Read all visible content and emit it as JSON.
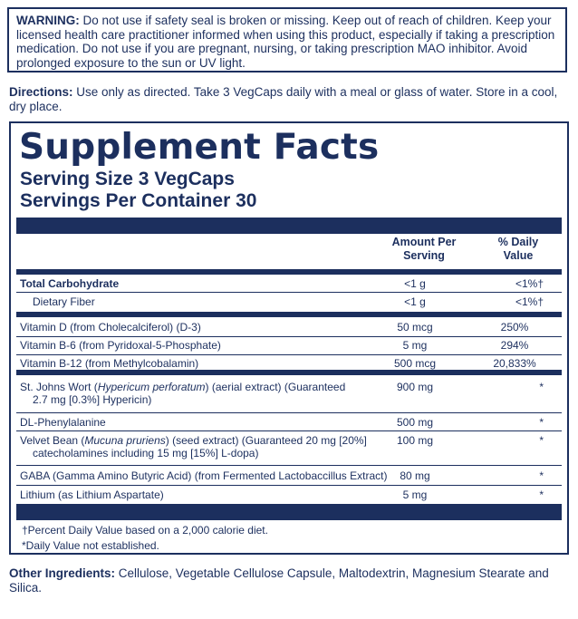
{
  "warning": {
    "label": "WARNING:",
    "text": "Do not use if safety seal is broken or missing. Keep out of reach of children. Keep your licensed health care practitioner informed when using this product, especially if taking a prescription medication. Do not use if you are pregnant, nursing, or taking prescription MAO inhibitor. Avoid prolonged exposure to the sun or UV light."
  },
  "directions": {
    "label": "Directions:",
    "text": "Use only as directed. Take 3 VegCaps daily with a meal or glass of water. Store in a cool, dry place."
  },
  "facts": {
    "title": "Supplement Facts",
    "serving_size": "Serving Size 3 VegCaps",
    "servings_per_container": "Servings Per Container 30",
    "col_amount": "Amount Per Serving",
    "col_dv": "% Daily Value",
    "rows": [
      {
        "name": "Total Carbohydrate",
        "amount": "<1 g",
        "dv": "<1%†"
      },
      {
        "name": "Dietary Fiber",
        "amount": "<1 g",
        "dv": "<1%†"
      },
      {
        "name": "Vitamin D (from Cholecalciferol) (D-3)",
        "amount": "50 mcg",
        "dv": "250%"
      },
      {
        "name": "Vitamin B-6 (from Pyridoxal-5-Phosphate)",
        "amount": "5 mg",
        "dv": "294%"
      },
      {
        "name": "Vitamin B-12 (from Methylcobalamin)",
        "amount": "500 mcg",
        "dv": "20,833%"
      },
      {
        "name_pre": "St. Johns Wort (",
        "name_italic": "Hypericum perforatum",
        "name_post": ") (aerial extract) (Guaranteed",
        "name_line2": "2.7 mg [0.3%] Hypericin)",
        "amount": "900 mg",
        "dv": "*"
      },
      {
        "name": "DL-Phenylalanine",
        "amount": "500 mg",
        "dv": "*"
      },
      {
        "name_pre": "Velvet Bean (",
        "name_italic": "Mucuna pruriens",
        "name_post": ") (seed extract) (Guaranteed 20 mg [20%]",
        "name_line2": "catecholamines including 15 mg [15%] L-dopa)",
        "amount": "100 mg",
        "dv": "*"
      },
      {
        "name": "GABA (Gamma Amino Butyric Acid) (from Fermented Lactobaccillus Extract)",
        "amount": "80 mg",
        "dv": "*"
      },
      {
        "name": "Lithium (as Lithium Aspartate)",
        "amount": "5 mg",
        "dv": "*"
      }
    ],
    "footnote1": "†Percent Daily Value based on a 2,000 calorie diet.",
    "footnote2": "*Daily Value not established."
  },
  "other": {
    "label": "Other Ingredients:",
    "text": "Cellulose, Vegetable Cellulose Capsule, Maltodextrin, Magnesium Stearate and Silica."
  },
  "colors": {
    "ink": "#1c2f5e",
    "background": "#ffffff"
  }
}
